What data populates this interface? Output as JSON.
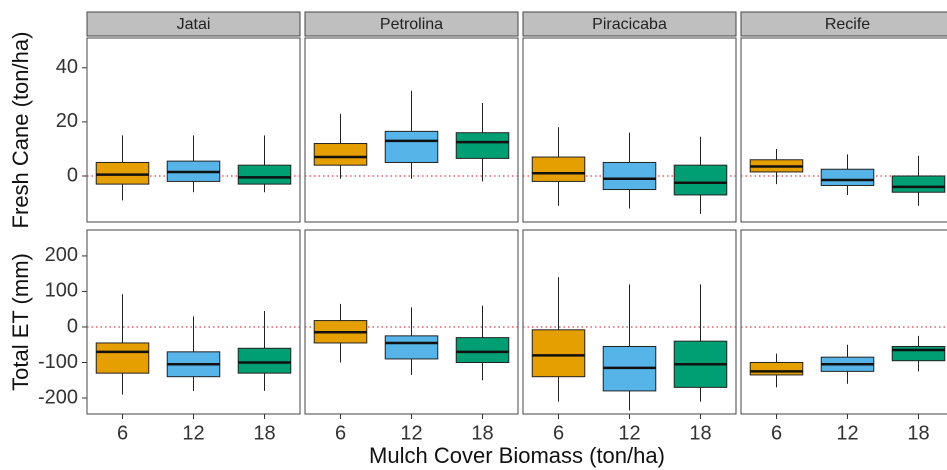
{
  "chart_data": {
    "type": "box",
    "x_label": "Mulch Cover Biomass (ton/ha)",
    "facets": [
      "Jatai",
      "Petrolina",
      "Piracicaba",
      "Recife"
    ],
    "categories": [
      "6",
      "12",
      "18"
    ],
    "colors": [
      "#E69F00",
      "#56B4E9",
      "#009E73"
    ],
    "reference_line": 0,
    "rows": [
      {
        "y_label": "Fresh Cane (ton/ha)",
        "ylim": [
          -17,
          51
        ],
        "yticks": [
          0,
          20,
          40
        ],
        "boxes": [
          [
            {
              "min": -9,
              "q1": -3,
              "median": 0.5,
              "q3": 5,
              "max": 15
            },
            {
              "min": -6,
              "q1": -2,
              "median": 1.5,
              "q3": 5.5,
              "max": 15
            },
            {
              "min": -6,
              "q1": -3,
              "median": -0.5,
              "q3": 4,
              "max": 15
            }
          ],
          [
            {
              "min": -1,
              "q1": 4,
              "median": 7,
              "q3": 12,
              "max": 23
            },
            {
              "min": -1,
              "q1": 5,
              "median": 13,
              "q3": 16.5,
              "max": 31.5
            },
            {
              "min": -2,
              "q1": 6.5,
              "median": 12.5,
              "q3": 16,
              "max": 27
            }
          ],
          [
            {
              "min": -11,
              "q1": -2,
              "median": 1,
              "q3": 7,
              "max": 18
            },
            {
              "min": -12,
              "q1": -5,
              "median": -1,
              "q3": 5,
              "max": 16
            },
            {
              "min": -14,
              "q1": -7,
              "median": -2.5,
              "q3": 4,
              "max": 14.5
            }
          ],
          [
            {
              "min": -3,
              "q1": 1.5,
              "median": 3.5,
              "q3": 6,
              "max": 10
            },
            {
              "min": -7,
              "q1": -3.5,
              "median": -1.5,
              "q3": 2.5,
              "max": 8
            },
            {
              "min": -11,
              "q1": -6,
              "median": -4,
              "q3": 0,
              "max": 7.5
            }
          ]
        ]
      },
      {
        "y_label": "Total ET (mm)",
        "ylim": [
          -245,
          273
        ],
        "yticks": [
          -200,
          -100,
          0,
          100,
          200
        ],
        "boxes": [
          [
            {
              "min": -190,
              "q1": -130,
              "median": -70,
              "q3": -45,
              "max": 92
            },
            {
              "min": -180,
              "q1": -140,
              "median": -105,
              "q3": -70,
              "max": 30
            },
            {
              "min": -180,
              "q1": -130,
              "median": -100,
              "q3": -60,
              "max": 45
            }
          ],
          [
            {
              "min": -100,
              "q1": -45,
              "median": -15,
              "q3": 18,
              "max": 65
            },
            {
              "min": -135,
              "q1": -90,
              "median": -45,
              "q3": -25,
              "max": 55
            },
            {
              "min": -150,
              "q1": -100,
              "median": -70,
              "q3": -30,
              "max": 60
            }
          ],
          [
            {
              "min": -210,
              "q1": -140,
              "median": -80,
              "q3": -8,
              "max": 140
            },
            {
              "min": -235,
              "q1": -180,
              "median": -115,
              "q3": -55,
              "max": 120
            },
            {
              "min": -210,
              "q1": -170,
              "median": -105,
              "q3": -40,
              "max": 120
            }
          ],
          [
            {
              "min": -170,
              "q1": -135,
              "median": -125,
              "q3": -100,
              "max": -75
            },
            {
              "min": -160,
              "q1": -125,
              "median": -105,
              "q3": -85,
              "max": -50
            },
            {
              "min": -125,
              "q1": -95,
              "median": -65,
              "q3": -55,
              "max": -25
            }
          ]
        ]
      }
    ]
  }
}
